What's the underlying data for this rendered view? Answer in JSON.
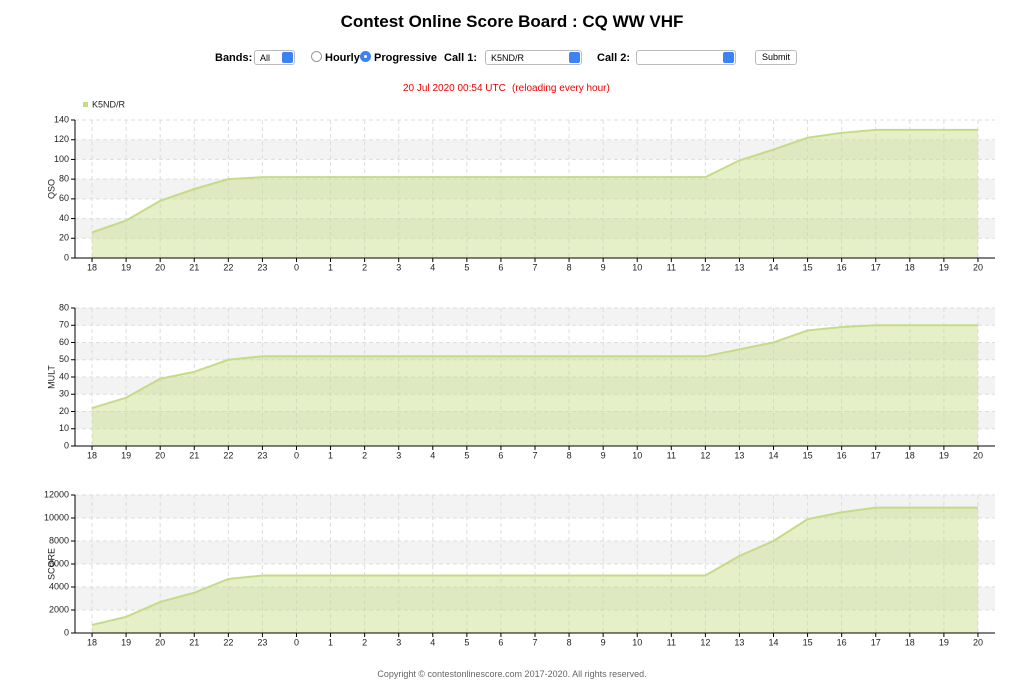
{
  "header": {
    "title": "Contest Online Score Board : CQ WW VHF"
  },
  "controls": {
    "bands_label": "Bands:",
    "bands_value": "All",
    "hourly": "Hourly",
    "progressive": "Progressive",
    "call1_label": "Call 1:",
    "call1_value": "K5ND/R",
    "call2_label": "Call 2:",
    "submit": "Submit"
  },
  "status": {
    "timestamp": "20 Jul 2020 00:54 UTC",
    "reload_note": "(reloading every hour)"
  },
  "chart_data": [
    {
      "type": "area",
      "ylabel": "QSO",
      "categories": [
        "18",
        "19",
        "20",
        "21",
        "22",
        "23",
        "0",
        "1",
        "2",
        "3",
        "4",
        "5",
        "6",
        "7",
        "8",
        "9",
        "10",
        "11",
        "12",
        "13",
        "14",
        "15",
        "16",
        "17",
        "18",
        "19",
        "20"
      ],
      "series": [
        {
          "name": "K5ND/R",
          "color": "#c5dc86",
          "values": [
            26,
            38,
            58,
            70,
            80,
            82,
            82,
            82,
            82,
            82,
            82,
            82,
            82,
            82,
            82,
            82,
            82,
            82,
            82,
            99,
            110,
            122,
            127,
            130,
            130,
            130,
            130
          ]
        }
      ],
      "ylim": [
        0,
        140
      ],
      "yticks": [
        0,
        20,
        40,
        60,
        80,
        100,
        120,
        140
      ],
      "grid": true,
      "legend": "top-left"
    },
    {
      "type": "area",
      "ylabel": "MULT",
      "categories": [
        "18",
        "19",
        "20",
        "21",
        "22",
        "23",
        "0",
        "1",
        "2",
        "3",
        "4",
        "5",
        "6",
        "7",
        "8",
        "9",
        "10",
        "11",
        "12",
        "13",
        "14",
        "15",
        "16",
        "17",
        "18",
        "19",
        "20"
      ],
      "series": [
        {
          "color": "#c5dc86",
          "values": [
            22,
            28,
            39,
            43,
            50,
            52,
            52,
            52,
            52,
            52,
            52,
            52,
            52,
            52,
            52,
            52,
            52,
            52,
            52,
            56,
            60,
            67,
            69,
            70,
            70,
            70,
            70
          ]
        }
      ],
      "ylim": [
        0,
        80
      ],
      "yticks": [
        0,
        10,
        20,
        30,
        40,
        50,
        60,
        70,
        80
      ],
      "grid": true
    },
    {
      "type": "area",
      "ylabel": "SCORE",
      "categories": [
        "18",
        "19",
        "20",
        "21",
        "22",
        "23",
        "0",
        "1",
        "2",
        "3",
        "4",
        "5",
        "6",
        "7",
        "8",
        "9",
        "10",
        "11",
        "12",
        "13",
        "14",
        "15",
        "16",
        "17",
        "18",
        "19",
        "20"
      ],
      "series": [
        {
          "color": "#c5dc86",
          "values": [
            700,
            1400,
            2700,
            3500,
            4700,
            5000,
            5000,
            5000,
            5000,
            5000,
            5000,
            5000,
            5000,
            5000,
            5000,
            5000,
            5000,
            5000,
            5000,
            6700,
            8000,
            9900,
            10500,
            10900,
            10900,
            10900,
            10900
          ]
        }
      ],
      "ylim": [
        0,
        12000
      ],
      "yticks": [
        0,
        2000,
        4000,
        6000,
        8000,
        10000,
        12000
      ],
      "grid": true
    }
  ],
  "footer": "Copyright © contestonlinescore.com 2017-2020. All rights reserved."
}
